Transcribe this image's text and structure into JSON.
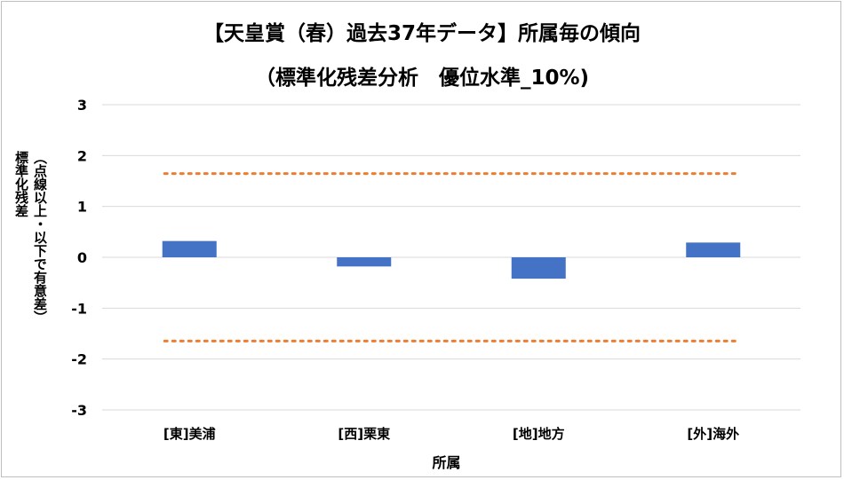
{
  "chart_data": {
    "type": "bar",
    "title_line1": "【天皇賞（春）過去37年データ】所属毎の傾向",
    "title_line2": "（標準化残差分析　優位水準_10%)",
    "ylabel_line1": "（点線以上・以下で有意差）",
    "ylabel_line2": "標準化残差",
    "xlabel": "所属",
    "categories": [
      "[東]美浦",
      "[西]栗東",
      "[地]地方",
      "[外]海外"
    ],
    "values": [
      0.32,
      -0.18,
      -0.42,
      0.29
    ],
    "ylim": [
      -3,
      3
    ],
    "yticks": [
      3,
      2,
      1,
      0,
      -1,
      -2,
      -3
    ],
    "threshold_upper": 1.645,
    "threshold_lower": -1.645,
    "grid": true,
    "colors": {
      "bar": "#4472c4",
      "threshold": "#ed7d31",
      "grid": "#d9d9d9"
    }
  }
}
